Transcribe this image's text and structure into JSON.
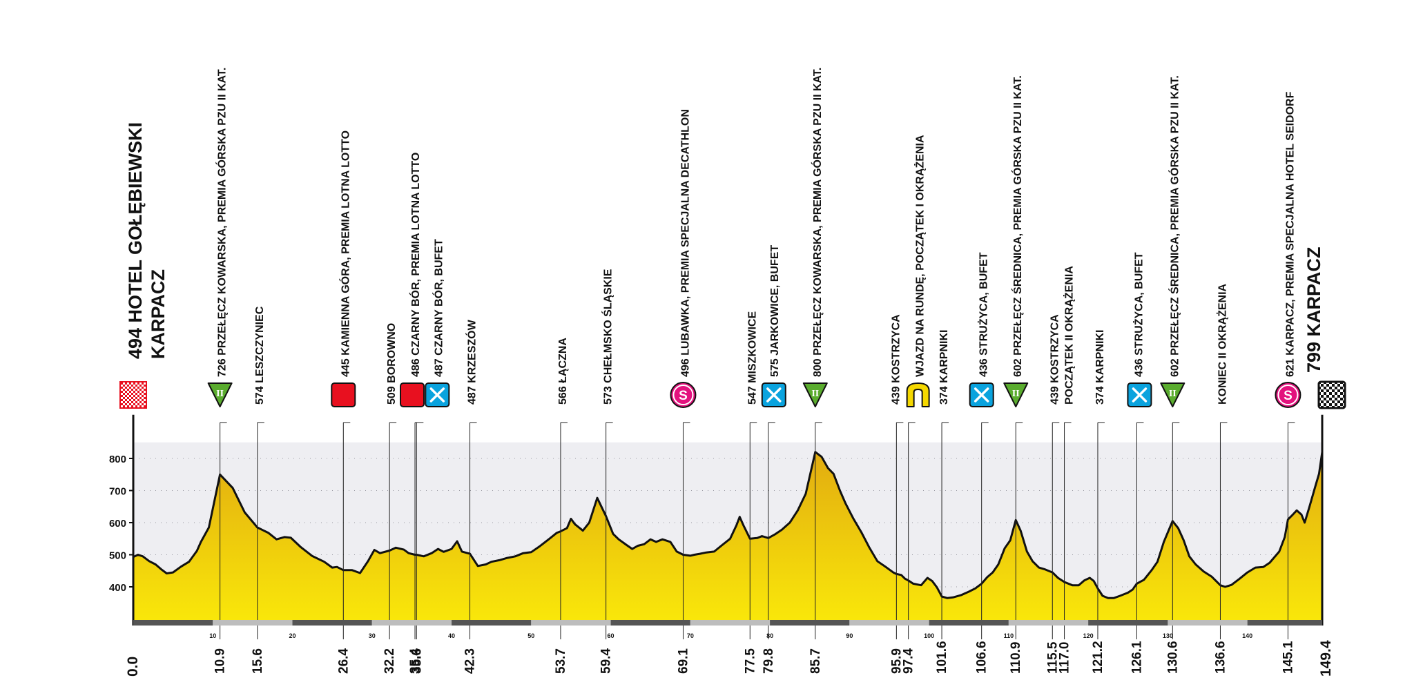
{
  "chart_data": {
    "type": "area",
    "title": "",
    "xlabel": "",
    "ylabel": "",
    "xlim": [
      0,
      149.4
    ],
    "ylim": [
      300,
      850
    ],
    "y_ticks": [
      "400",
      "500",
      "600",
      "700",
      "800"
    ],
    "x_minor_ticks": [
      "10",
      "20",
      "30",
      "40",
      "50",
      "60",
      "70",
      "80",
      "90",
      "100",
      "110",
      "120",
      "130",
      "140"
    ],
    "start_km": "0.0",
    "finish_km": "149.4",
    "profile": [
      [
        0,
        493
      ],
      [
        0.6,
        500
      ],
      [
        1.2,
        495
      ],
      [
        2,
        480
      ],
      [
        2.8,
        470
      ],
      [
        3.5,
        455
      ],
      [
        4.2,
        442
      ],
      [
        5,
        445
      ],
      [
        6,
        463
      ],
      [
        7,
        478
      ],
      [
        8,
        512
      ],
      [
        8.5,
        540
      ],
      [
        9.5,
        585
      ],
      [
        10.9,
        750
      ],
      [
        12.5,
        708
      ],
      [
        14,
        632
      ],
      [
        15.6,
        585
      ],
      [
        17,
        568
      ],
      [
        18,
        548
      ],
      [
        19,
        555
      ],
      [
        19.8,
        553
      ],
      [
        21,
        525
      ],
      [
        22.5,
        496
      ],
      [
        24,
        478
      ],
      [
        25,
        460
      ],
      [
        25.6,
        462
      ],
      [
        26.4,
        452
      ],
      [
        27.5,
        452
      ],
      [
        28.5,
        443
      ],
      [
        29.5,
        480
      ],
      [
        30.3,
        515
      ],
      [
        31,
        505
      ],
      [
        32.2,
        513
      ],
      [
        33,
        522
      ],
      [
        34,
        516
      ],
      [
        34.6,
        505
      ],
      [
        35.4,
        500
      ],
      [
        35.6,
        500
      ],
      [
        36.5,
        495
      ],
      [
        37.5,
        505
      ],
      [
        38.3,
        518
      ],
      [
        39,
        509
      ],
      [
        40,
        518
      ],
      [
        40.7,
        542
      ],
      [
        41.3,
        510
      ],
      [
        42.3,
        503
      ],
      [
        43.3,
        465
      ],
      [
        44.3,
        470
      ],
      [
        45,
        478
      ],
      [
        46,
        483
      ],
      [
        47,
        490
      ],
      [
        48,
        495
      ],
      [
        49,
        505
      ],
      [
        50,
        508
      ],
      [
        51,
        525
      ],
      [
        52.3,
        550
      ],
      [
        53.2,
        568
      ],
      [
        53.7,
        573
      ],
      [
        54.5,
        583
      ],
      [
        55,
        612
      ],
      [
        55.5,
        595
      ],
      [
        56.5,
        575
      ],
      [
        57.3,
        600
      ],
      [
        58.3,
        677
      ],
      [
        59.4,
        620
      ],
      [
        60.3,
        565
      ],
      [
        61,
        548
      ],
      [
        62,
        530
      ],
      [
        62.7,
        518
      ],
      [
        63.4,
        528
      ],
      [
        64.2,
        533
      ],
      [
        65,
        548
      ],
      [
        65.7,
        540
      ],
      [
        66.5,
        548
      ],
      [
        67.5,
        540
      ],
      [
        68.3,
        510
      ],
      [
        69.1,
        500
      ],
      [
        70,
        497
      ],
      [
        70.5,
        500
      ],
      [
        71.2,
        503
      ],
      [
        72,
        507
      ],
      [
        73,
        510
      ],
      [
        74,
        530
      ],
      [
        75,
        550
      ],
      [
        75.8,
        592
      ],
      [
        76.2,
        618
      ],
      [
        76.7,
        590
      ],
      [
        77.5,
        550
      ],
      [
        78.4,
        552
      ],
      [
        79,
        558
      ],
      [
        79.8,
        552
      ],
      [
        80.6,
        563
      ],
      [
        81.5,
        578
      ],
      [
        82.5,
        600
      ],
      [
        83.5,
        638
      ],
      [
        84.5,
        690
      ],
      [
        85.7,
        820
      ],
      [
        86.5,
        805
      ],
      [
        87.3,
        770
      ],
      [
        88,
        752
      ],
      [
        88.8,
        700
      ],
      [
        89.5,
        660
      ],
      [
        90.5,
        612
      ],
      [
        91.5,
        570
      ],
      [
        92.5,
        522
      ],
      [
        93.5,
        480
      ],
      [
        94.5,
        463
      ],
      [
        95.5,
        445
      ],
      [
        95.9,
        440
      ],
      [
        96.5,
        437
      ],
      [
        97,
        425
      ],
      [
        97.4,
        420
      ],
      [
        98,
        410
      ],
      [
        99,
        405
      ],
      [
        99.8,
        428
      ],
      [
        100.4,
        418
      ],
      [
        101,
        398
      ],
      [
        101.6,
        370
      ],
      [
        102.3,
        365
      ],
      [
        103,
        367
      ],
      [
        104,
        374
      ],
      [
        105,
        385
      ],
      [
        105.8,
        395
      ],
      [
        106.6,
        410
      ],
      [
        107.3,
        430
      ],
      [
        108,
        445
      ],
      [
        108.7,
        470
      ],
      [
        109.5,
        520
      ],
      [
        110.2,
        545
      ],
      [
        110.9,
        608
      ],
      [
        111.5,
        575
      ],
      [
        112.3,
        510
      ],
      [
        113,
        480
      ],
      [
        113.8,
        460
      ],
      [
        114.5,
        455
      ],
      [
        115.5,
        445
      ],
      [
        116.2,
        428
      ],
      [
        117,
        415
      ],
      [
        118,
        405
      ],
      [
        118.8,
        405
      ],
      [
        119.5,
        420
      ],
      [
        120.2,
        428
      ],
      [
        120.7,
        418
      ],
      [
        121.2,
        395
      ],
      [
        121.8,
        372
      ],
      [
        122.5,
        365
      ],
      [
        123.2,
        365
      ],
      [
        124,
        372
      ],
      [
        125,
        382
      ],
      [
        125.6,
        392
      ],
      [
        126.1,
        410
      ],
      [
        127,
        422
      ],
      [
        128,
        453
      ],
      [
        128.7,
        478
      ],
      [
        129.5,
        540
      ],
      [
        130.6,
        605
      ],
      [
        131.3,
        583
      ],
      [
        132,
        545
      ],
      [
        132.7,
        495
      ],
      [
        133.5,
        470
      ],
      [
        134.5,
        448
      ],
      [
        135.5,
        432
      ],
      [
        136.6,
        405
      ],
      [
        137.2,
        400
      ],
      [
        138,
        406
      ],
      [
        139,
        425
      ],
      [
        140,
        445
      ],
      [
        141,
        460
      ],
      [
        142,
        462
      ],
      [
        142.8,
        475
      ],
      [
        144,
        510
      ],
      [
        144.7,
        555
      ],
      [
        145.1,
        610
      ],
      [
        145.7,
        625
      ],
      [
        146.2,
        638
      ],
      [
        146.8,
        625
      ],
      [
        147.2,
        600
      ],
      [
        147.8,
        650
      ],
      [
        148.5,
        710
      ],
      [
        149,
        752
      ],
      [
        149.4,
        820
      ]
    ],
    "points": [
      {
        "km": 0.0,
        "km_label": "0.0",
        "alt": "494",
        "name": "HOTEL GOŁĘBIEWSKI",
        "name2": "KARPACZ",
        "icon": "start-flag-icon",
        "start": true
      },
      {
        "km": 10.9,
        "km_label": "10.9",
        "alt": "726",
        "name": "PRZEŁĘCZ KOWARSKA, PREMIA GÓRSKA PZU II KAT.",
        "icon": "mountain-cat2-icon"
      },
      {
        "km": 15.6,
        "km_label": "15.6",
        "alt": "574",
        "name": "LESZCZYNIEC",
        "icon": ""
      },
      {
        "km": 26.4,
        "km_label": "26.4",
        "alt": "445",
        "name": "KAMIENNA GÓRA, PREMIA LOTNA LOTTO",
        "icon": "sprint-icon"
      },
      {
        "km": 32.2,
        "km_label": "32.2",
        "alt": "509",
        "name": "BOROWNO",
        "icon": ""
      },
      {
        "km": 35.4,
        "km_label": "35.4",
        "alt": "486",
        "name": "CZARNY BÓR, PREMIA LOTNA LOTTO",
        "icon": "sprint-icon"
      },
      {
        "km": 35.6,
        "km_label": "35.6",
        "alt": "487",
        "name": "CZARNY BÓR, BUFET",
        "icon": "feed-zone-icon"
      },
      {
        "km": 42.3,
        "km_label": "42.3",
        "alt": "487",
        "name": "KRZESZÓW",
        "icon": ""
      },
      {
        "km": 53.7,
        "km_label": "53.7",
        "alt": "566",
        "name": "ŁĄCZNA",
        "icon": ""
      },
      {
        "km": 59.4,
        "km_label": "59.4",
        "alt": "573",
        "name": "CHEŁMSKO ŚLĄSKIE",
        "icon": ""
      },
      {
        "km": 69.1,
        "km_label": "69.1",
        "alt": "496",
        "name": "LUBAWKA, PREMIA SPECJALNA DECATHLON",
        "icon": "special-prize-icon"
      },
      {
        "km": 77.5,
        "km_label": "77.5",
        "alt": "547",
        "name": "MISZKOWICE",
        "icon": ""
      },
      {
        "km": 79.8,
        "km_label": "79.8",
        "alt": "575",
        "name": "JARKOWICE, BUFET",
        "icon": "feed-zone-icon"
      },
      {
        "km": 85.7,
        "km_label": "85.7",
        "alt": "800",
        "name": "PRZEŁĘCZ KOWARSKA, PREMIA GÓRSKA PZU II KAT.",
        "icon": "mountain-cat2-icon"
      },
      {
        "km": 95.9,
        "km_label": "95.9",
        "alt": "439",
        "name": "KOSTRZYCA",
        "icon": ""
      },
      {
        "km": 97.4,
        "km_label": "97.4",
        "alt": "",
        "name": "WJAZD NA RUNDĘ, POCZĄTEK I OKRĄŻENIA",
        "icon": "loop-icon"
      },
      {
        "km": 101.6,
        "km_label": "101.6",
        "alt": "374",
        "name": "KARPNIKI",
        "icon": ""
      },
      {
        "km": 106.6,
        "km_label": "106.6",
        "alt": "436",
        "name": "STRUŻYCA, BUFET",
        "icon": "feed-zone-icon"
      },
      {
        "km": 110.9,
        "km_label": "110.9",
        "alt": "602",
        "name": "PRZEŁĘCZ ŚREDNICA, PREMIA GÓRSKA PZU II KAT.",
        "icon": "mountain-cat2-icon"
      },
      {
        "km": 115.5,
        "km_label": "115.5",
        "alt": "439",
        "name": "KOSTRZYCA",
        "icon": ""
      },
      {
        "km": 117.0,
        "km_label": "117.0",
        "alt": "",
        "name": "POCZĄTEK II OKRĄŻENIA",
        "icon": ""
      },
      {
        "km": 121.2,
        "km_label": "121.2",
        "alt": "374",
        "name": "KARPNIKI",
        "icon": ""
      },
      {
        "km": 126.1,
        "km_label": "126.1",
        "alt": "436",
        "name": "STRUŻYCA, BUFET",
        "icon": "feed-zone-icon"
      },
      {
        "km": 130.6,
        "km_label": "130.6",
        "alt": "602",
        "name": "PRZEŁĘCZ ŚREDNICA, PREMIA GÓRSKA PZU II KAT.",
        "icon": "mountain-cat2-icon"
      },
      {
        "km": 136.6,
        "km_label": "136.6",
        "alt": "",
        "name": "KONIEC II OKRĄŻENIA",
        "icon": ""
      },
      {
        "km": 145.1,
        "km_label": "145.1",
        "alt": "621",
        "name": "KARPACZ, PREMIA SPECJALNA HOTEL SEIDORF",
        "icon": "special-prize-icon"
      },
      {
        "km": 149.4,
        "km_label": "149.4",
        "alt": "799",
        "name": "KARPACZ",
        "icon": "finish-flag-icon",
        "finish": true
      }
    ],
    "icon_letters": {
      "mountain": "II",
      "special": "S"
    },
    "colors": {
      "fill_top": "#e2ac10",
      "fill_bottom": "#f9e70a",
      "band": "#eeeef2",
      "outline": "#111111",
      "sprint": "#e8101f",
      "special": "#e3127e",
      "mountain": "#5aac2e",
      "feed": "#0aa3de",
      "loop": "#f5d800",
      "km_bar_dark": "#555555",
      "km_bar_light": "#bdbdbd"
    },
    "grid": true,
    "legend": "none"
  }
}
